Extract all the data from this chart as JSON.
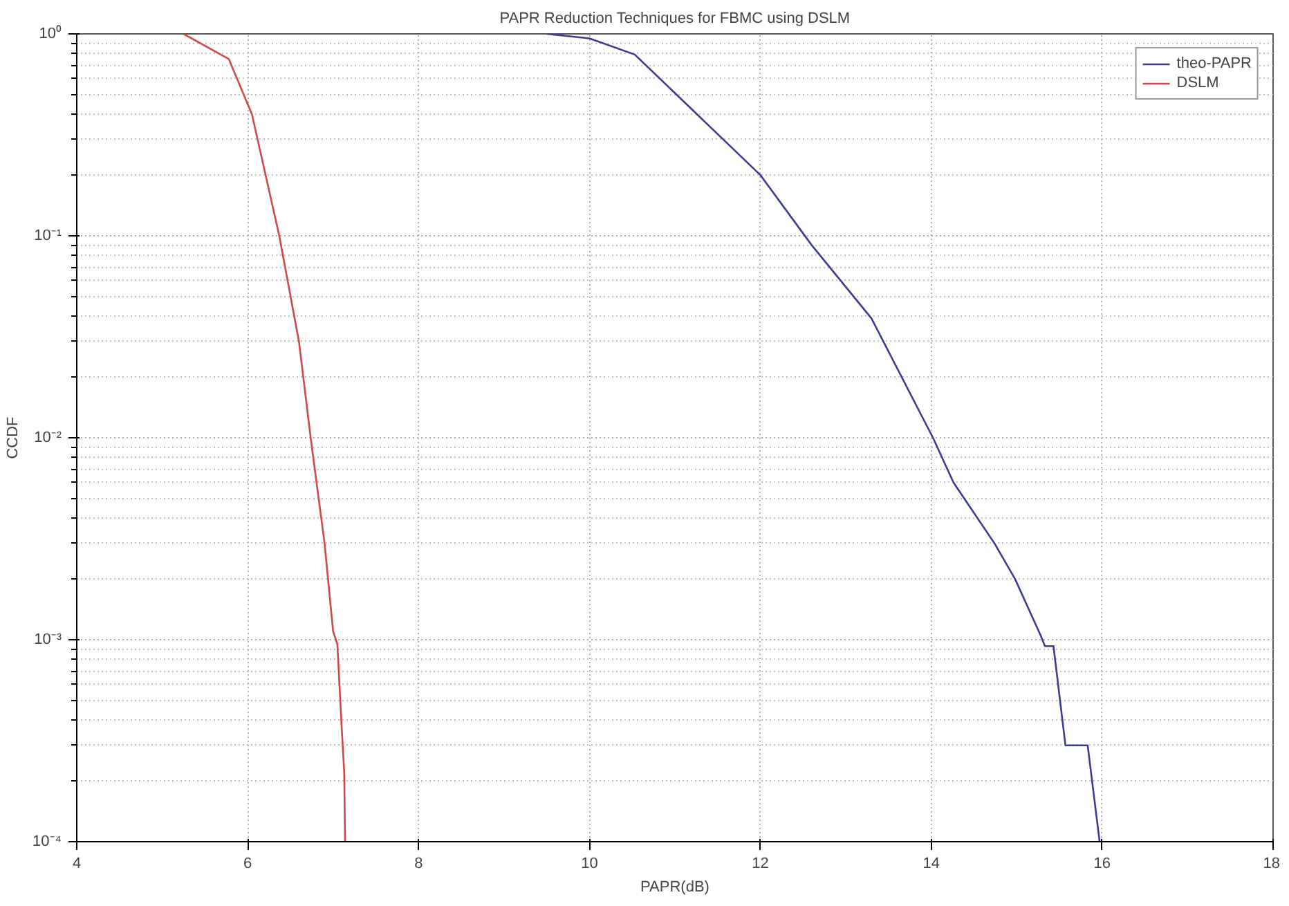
{
  "chart_data": {
    "type": "line",
    "title": "PAPR Reduction Techniques for FBMC using DSLM",
    "xlabel": "PAPR(dB)",
    "ylabel": "CCDF",
    "xlim": [
      4,
      18
    ],
    "xticks": [
      4,
      6,
      8,
      10,
      12,
      14,
      16,
      18
    ],
    "ylim": [
      0.0001,
      1
    ],
    "yticks": [
      {
        "value": 0.0001,
        "label": "10⁻⁴"
      },
      {
        "value": 0.001,
        "label": "10⁻³"
      },
      {
        "value": 0.01,
        "label": "10⁻²"
      },
      {
        "value": 0.1,
        "label": "10⁻¹"
      },
      {
        "value": 1,
        "label": "10⁰"
      }
    ],
    "log": "y",
    "grid": true,
    "legend": "top right",
    "line_style": "solid",
    "series": [
      {
        "name": "theo-PAPR",
        "color": "#3c3c96",
        "x": [
          9.5,
          10.0,
          10.53,
          12.0,
          12.6,
          13.3,
          14.02,
          14.26,
          14.74,
          14.98,
          15.28,
          15.33,
          15.43,
          15.57,
          15.83,
          15.97
        ],
        "values": [
          1,
          0.95,
          0.79,
          0.2,
          0.09,
          0.039,
          0.01,
          0.006,
          0.003,
          0.002,
          0.00105,
          0.00093,
          0.00093,
          0.0003,
          0.0003,
          0.0001
        ]
      },
      {
        "name": "DSLM",
        "color": "#d04848",
        "x": [
          5.25,
          5.78,
          6.05,
          6.37,
          6.6,
          6.74,
          6.9,
          7.0,
          7.05,
          7.1,
          7.13,
          7.14
        ],
        "values": [
          1,
          0.75,
          0.4,
          0.1,
          0.03,
          0.0098,
          0.003,
          0.0011,
          0.00095,
          0.00037,
          0.00022,
          0.0001
        ]
      }
    ]
  }
}
